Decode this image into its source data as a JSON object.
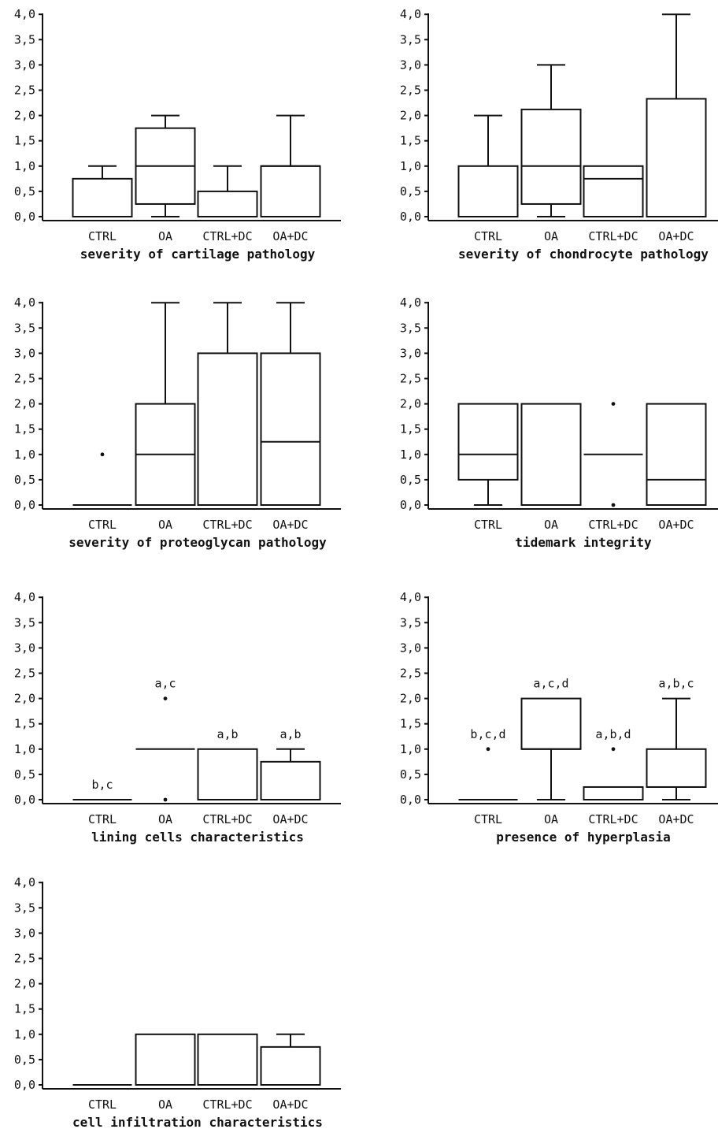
{
  "chart_data": [
    {
      "type": "box",
      "xlabel": "severity of cartilage pathology",
      "ylabel": "",
      "categories": [
        "CTRL",
        "OA",
        "CTRL+DC",
        "OA+DC"
      ],
      "yticks": [
        "0,0",
        "0,5",
        "1,0",
        "1,5",
        "2,0",
        "2,5",
        "3,0",
        "3,5",
        "4,0"
      ],
      "ylim": [
        0,
        4
      ],
      "boxes": [
        {
          "group": "CTRL",
          "min": 0,
          "q1": 0,
          "median": 0,
          "q3": 0.75,
          "max": 1,
          "outliers": [],
          "annotation": ""
        },
        {
          "group": "OA",
          "min": 0,
          "q1": 0.25,
          "median": 1,
          "q3": 1.75,
          "max": 2,
          "outliers": [],
          "annotation": ""
        },
        {
          "group": "CTRL+DC",
          "min": 0,
          "q1": 0,
          "median": 0,
          "q3": 0.5,
          "max": 1,
          "outliers": [],
          "annotation": ""
        },
        {
          "group": "OA+DC",
          "min": 0,
          "q1": 0,
          "median": 1,
          "q3": 1,
          "max": 2,
          "outliers": [],
          "annotation": ""
        }
      ]
    },
    {
      "type": "box",
      "xlabel": "severity of chondrocyte pathology",
      "ylabel": "",
      "categories": [
        "CTRL",
        "OA",
        "CTRL+DC",
        "OA+DC"
      ],
      "yticks": [
        "0,0",
        "0,5",
        "1,0",
        "1,5",
        "2,0",
        "2,5",
        "3,0",
        "3,5",
        "4,0"
      ],
      "ylim": [
        0,
        4
      ],
      "boxes": [
        {
          "group": "CTRL",
          "min": 0,
          "q1": 0,
          "median": 0,
          "q3": 1,
          "max": 2,
          "outliers": [],
          "annotation": ""
        },
        {
          "group": "OA",
          "min": 0,
          "q1": 0.25,
          "median": 1,
          "q3": 2.12,
          "max": 3,
          "outliers": [],
          "annotation": ""
        },
        {
          "group": "CTRL+DC",
          "min": 0,
          "q1": 0,
          "median": 0.75,
          "q3": 1,
          "max": 1,
          "outliers": [],
          "annotation": ""
        },
        {
          "group": "OA+DC",
          "min": 0,
          "q1": 0,
          "median": 0,
          "q3": 2.33,
          "max": 4,
          "outliers": [],
          "annotation": ""
        }
      ]
    },
    {
      "type": "box",
      "xlabel": "severity of proteoglycan pathology",
      "ylabel": "",
      "categories": [
        "CTRL",
        "OA",
        "CTRL+DC",
        "OA+DC"
      ],
      "yticks": [
        "0,0",
        "0,5",
        "1,0",
        "1,5",
        "2,0",
        "2,5",
        "3,0",
        "3,5",
        "4,0"
      ],
      "ylim": [
        0,
        4
      ],
      "boxes": [
        {
          "group": "CTRL",
          "min": 0,
          "q1": 0,
          "median": 0,
          "q3": 0,
          "max": 0,
          "outliers": [
            1
          ],
          "annotation": ""
        },
        {
          "group": "OA",
          "min": 0,
          "q1": 0,
          "median": 1,
          "q3": 2,
          "max": 4,
          "outliers": [],
          "annotation": ""
        },
        {
          "group": "CTRL+DC",
          "min": 0,
          "q1": 0,
          "median": 0,
          "q3": 3,
          "max": 4,
          "outliers": [],
          "annotation": ""
        },
        {
          "group": "OA+DC",
          "min": 0,
          "q1": 0,
          "median": 1.25,
          "q3": 3,
          "max": 4,
          "outliers": [],
          "annotation": ""
        }
      ]
    },
    {
      "type": "box",
      "xlabel": "tidemark integrity",
      "ylabel": "",
      "categories": [
        "CTRL",
        "OA",
        "CTRL+DC",
        "OA+DC"
      ],
      "yticks": [
        "0,0",
        "0,5",
        "1,0",
        "1,5",
        "2,0",
        "2,5",
        "3,0",
        "3,5",
        "4,0"
      ],
      "ylim": [
        0,
        4
      ],
      "boxes": [
        {
          "group": "CTRL",
          "min": 0,
          "q1": 0.5,
          "median": 1,
          "q3": 2,
          "max": 2,
          "outliers": [],
          "annotation": ""
        },
        {
          "group": "OA",
          "min": 0,
          "q1": 0,
          "median": 0,
          "q3": 2,
          "max": 2,
          "outliers": [],
          "annotation": ""
        },
        {
          "group": "CTRL+DC",
          "min": 1,
          "q1": 1,
          "median": 1,
          "q3": 1,
          "max": 1,
          "outliers": [
            2,
            0
          ],
          "annotation": ""
        },
        {
          "group": "OA+DC",
          "min": 0,
          "q1": 0,
          "median": 0.5,
          "q3": 2,
          "max": 2,
          "outliers": [],
          "annotation": ""
        }
      ]
    },
    {
      "type": "box",
      "xlabel": "lining cells characteristics",
      "ylabel": "",
      "categories": [
        "CTRL",
        "OA",
        "CTRL+DC",
        "OA+DC"
      ],
      "yticks": [
        "0,0",
        "0,5",
        "1,0",
        "1,5",
        "2,0",
        "2,5",
        "3,0",
        "3,5",
        "4,0"
      ],
      "ylim": [
        0,
        4
      ],
      "boxes": [
        {
          "group": "CTRL",
          "min": 0,
          "q1": 0,
          "median": 0,
          "q3": 0,
          "max": 0,
          "outliers": [],
          "annotation": "b,c"
        },
        {
          "group": "OA",
          "min": 1,
          "q1": 1,
          "median": 1,
          "q3": 1,
          "max": 1,
          "outliers": [
            2,
            0
          ],
          "annotation": "a,c"
        },
        {
          "group": "CTRL+DC",
          "min": 0,
          "q1": 0,
          "median": 0,
          "q3": 1,
          "max": 1,
          "outliers": [],
          "annotation": "a,b"
        },
        {
          "group": "OA+DC",
          "min": 0,
          "q1": 0,
          "median": 0,
          "q3": 0.75,
          "max": 1,
          "outliers": [],
          "annotation": "a,b"
        }
      ]
    },
    {
      "type": "box",
      "xlabel": "presence of hyperplasia",
      "ylabel": "",
      "categories": [
        "CTRL",
        "OA",
        "CTRL+DC",
        "OA+DC"
      ],
      "yticks": [
        "0,0",
        "0,5",
        "1,0",
        "1,5",
        "2,0",
        "2,5",
        "3,0",
        "3,5",
        "4,0"
      ],
      "ylim": [
        0,
        4
      ],
      "boxes": [
        {
          "group": "CTRL",
          "min": 0,
          "q1": 0,
          "median": 0,
          "q3": 0,
          "max": 0,
          "outliers": [
            1
          ],
          "annotation": "b,c,d"
        },
        {
          "group": "OA",
          "min": 0,
          "q1": 1,
          "median": 1,
          "q3": 2,
          "max": 2,
          "outliers": [],
          "annotation": "a,c,d"
        },
        {
          "group": "CTRL+DC",
          "min": 0,
          "q1": 0,
          "median": 0,
          "q3": 0.25,
          "max": 0.25,
          "outliers": [
            1
          ],
          "annotation": "a,b,d"
        },
        {
          "group": "OA+DC",
          "min": 0,
          "q1": 0.25,
          "median": 0.25,
          "q3": 1,
          "max": 2,
          "outliers": [],
          "annotation": "a,b,c"
        }
      ]
    },
    {
      "type": "box",
      "xlabel": "cell infiltration characteristics",
      "ylabel": "",
      "categories": [
        "CTRL",
        "OA",
        "CTRL+DC",
        "OA+DC"
      ],
      "yticks": [
        "0,0",
        "0,5",
        "1,0",
        "1,5",
        "2,0",
        "2,5",
        "3,0",
        "3,5",
        "4,0"
      ],
      "ylim": [
        0,
        4
      ],
      "boxes": [
        {
          "group": "CTRL",
          "min": 0,
          "q1": 0,
          "median": 0,
          "q3": 0,
          "max": 0,
          "outliers": [],
          "annotation": ""
        },
        {
          "group": "OA",
          "min": 0,
          "q1": 0,
          "median": 0,
          "q3": 1,
          "max": 1,
          "outliers": [],
          "annotation": ""
        },
        {
          "group": "CTRL+DC",
          "min": 0,
          "q1": 0,
          "median": 0,
          "q3": 1,
          "max": 1,
          "outliers": [],
          "annotation": ""
        },
        {
          "group": "OA+DC",
          "min": 0,
          "q1": 0,
          "median": 0,
          "q3": 0.75,
          "max": 1,
          "outliers": [],
          "annotation": ""
        }
      ]
    }
  ]
}
